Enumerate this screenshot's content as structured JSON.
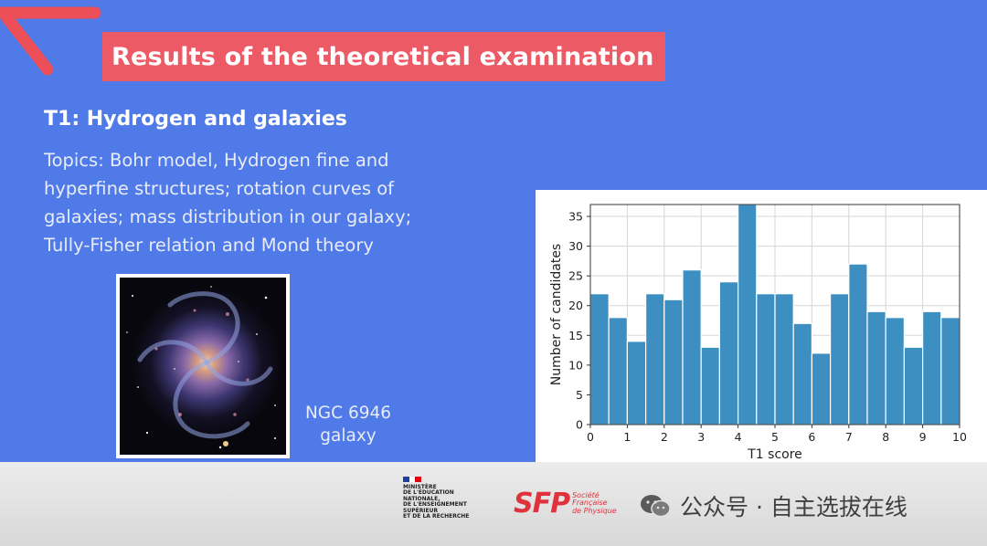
{
  "slide": {
    "title": "Results of the theoretical examination",
    "subtitle": "T1: Hydrogen and galaxies",
    "topics": [
      "Topics: Bohr model, Hydrogen fine and",
      "hyperfine structures; rotation curves of",
      "galaxies; mass distribution in our galaxy;",
      "Tully-Fisher relation and Mond theory"
    ],
    "image_caption": [
      "NGC 6946",
      "galaxy"
    ]
  },
  "footer": {
    "ministere_lines": [
      "MINISTÈRE",
      "DE L'ÉDUCATION",
      "NATIONALE,",
      "DE L'ENSEIGNEMENT",
      "SUPÉRIEUR",
      "ET DE LA RECHERCHE"
    ],
    "sfp_mark": "SFP",
    "sfp_text": [
      "Société",
      "Française",
      "de Physique"
    ],
    "watermark": "公众号 · 自主选拔在线"
  },
  "colors": {
    "background": "#4f7ae8",
    "title_bar": "#ec5a66",
    "bar_fill": "#3d8fc2",
    "bar_edge": "#ffffff"
  },
  "chart_data": {
    "type": "bar",
    "xlabel": "T1 score",
    "ylabel": "Number of candidates",
    "xlim": [
      0,
      10
    ],
    "ylim": [
      0,
      37
    ],
    "xticks": [
      0,
      1,
      2,
      3,
      4,
      5,
      6,
      7,
      8,
      9,
      10
    ],
    "yticks": [
      0,
      5,
      10,
      15,
      20,
      25,
      30,
      35
    ],
    "bin_width": 0.5,
    "bin_starts": [
      0,
      0.5,
      1,
      1.5,
      2,
      2.5,
      3,
      3.5,
      4,
      4.5,
      5,
      5.5,
      6,
      6.5,
      7,
      7.5,
      8,
      8.5,
      9,
      9.5
    ],
    "values": [
      22,
      18,
      14,
      22,
      21,
      26,
      13,
      24,
      37,
      22,
      22,
      17,
      12,
      22,
      27,
      19,
      18,
      13,
      19,
      18
    ],
    "grid": true
  }
}
